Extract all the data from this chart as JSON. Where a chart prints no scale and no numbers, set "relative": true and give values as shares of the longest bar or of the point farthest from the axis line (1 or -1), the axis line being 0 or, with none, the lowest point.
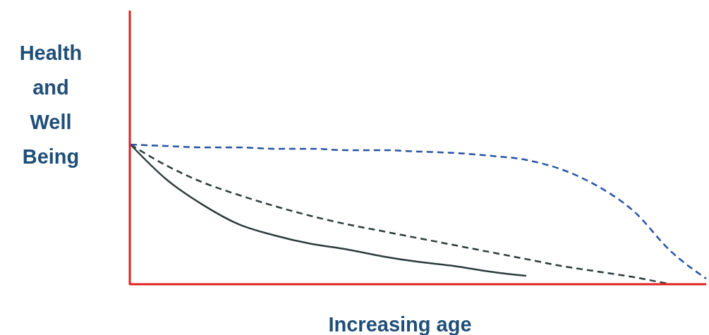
{
  "chart_data": {
    "type": "line",
    "relative": true,
    "xlabel": "Increasing age",
    "ylabel": "Health and Well Being",
    "categories": [
      null,
      null,
      null,
      null,
      null,
      null,
      null,
      null,
      null,
      null,
      null,
      null,
      null,
      null,
      null,
      null,
      null
    ],
    "series": [
      {
        "color": "#2d3b3b",
        "line_style": "solid",
        "values": [
          1,
          0.75,
          0.57,
          0.43,
          0.35,
          0.29,
          0.25,
          0.2,
          0.16,
          0.13,
          0.09,
          0.06,
          null,
          null,
          null,
          null,
          null
        ]
      },
      {
        "color": "#2d3b3b",
        "line_style": "dashed",
        "values": [
          1,
          0.85,
          0.73,
          0.64,
          0.56,
          0.49,
          0.43,
          0.38,
          0.33,
          0.28,
          0.23,
          0.18,
          0.13,
          0.09,
          0.05,
          0,
          null
        ]
      },
      {
        "color": "#2753a3",
        "line_style": "dashed",
        "values": [
          1,
          0.99,
          0.98,
          0.98,
          0.97,
          0.97,
          0.96,
          0.96,
          0.95,
          0.94,
          0.92,
          0.89,
          0.82,
          0.7,
          0.52,
          0.24,
          0.04
        ]
      }
    ]
  }
}
